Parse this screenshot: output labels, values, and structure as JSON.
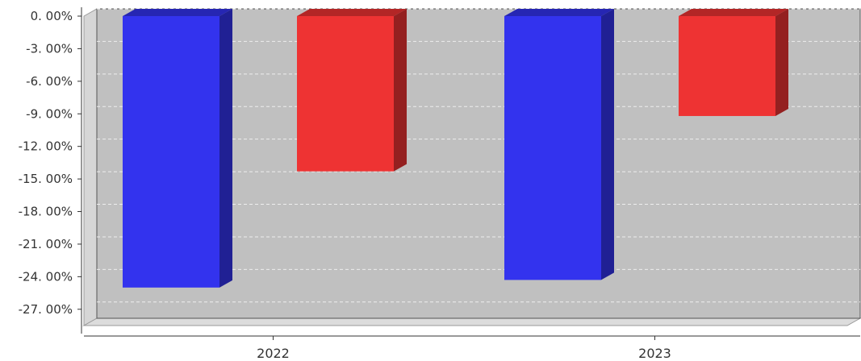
{
  "chart_data": {
    "type": "bar",
    "categories": [
      "2022",
      "2023"
    ],
    "series": [
      {
        "values": [
          -25.0,
          -24.3
        ],
        "color": "#3333ee"
      },
      {
        "values": [
          -14.3,
          -9.2
        ],
        "color": "#ee3333"
      }
    ],
    "yticks": [
      0,
      -3,
      -6,
      -9,
      -12,
      -15,
      -18,
      -21,
      -24,
      -27
    ],
    "ytick_labels": [
      "0. 00%",
      "-3. 00%",
      "-6. 00%",
      "-9. 00%",
      "-12. 00%",
      "-15. 00%",
      "-18. 00%",
      "-21. 00%",
      "-24. 00%",
      "-27. 00%"
    ],
    "ylim": [
      -28.5,
      0
    ],
    "grid": true,
    "legend": "none",
    "style": "3d",
    "background": "#c0c0c0"
  }
}
